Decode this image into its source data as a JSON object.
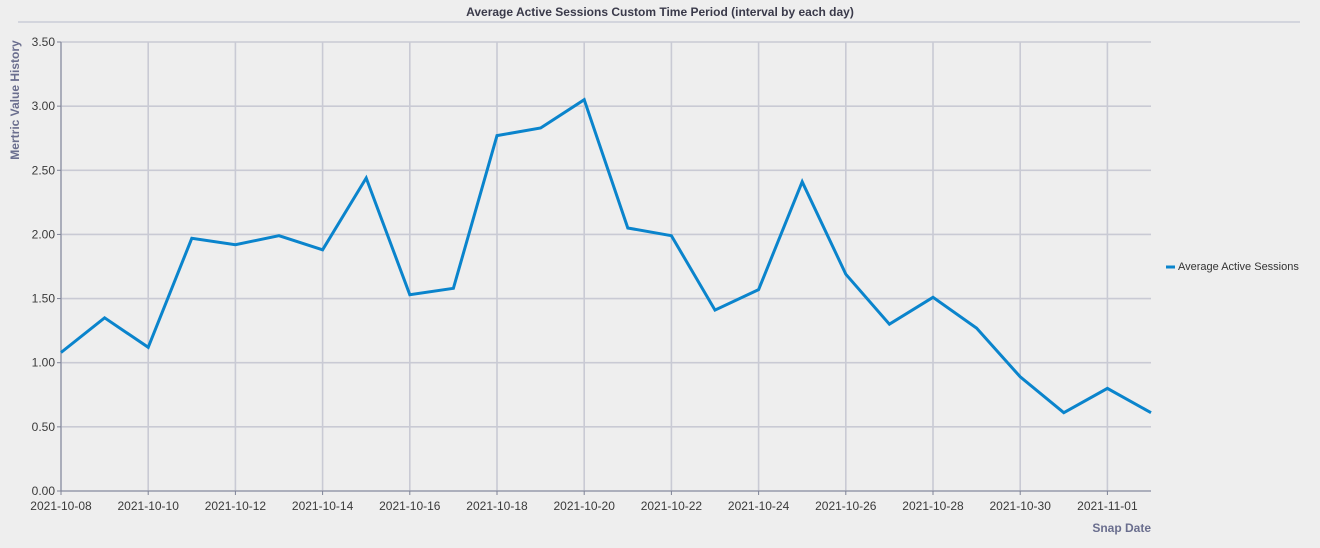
{
  "chart_data": {
    "type": "line",
    "title": "Average Active Sessions Custom Time Period (interval by each day)",
    "xlabel": "Snap Date",
    "ylabel": "Mertric Value History",
    "ylim": [
      0,
      3.5
    ],
    "yticks": [
      "0.00",
      "0.50",
      "1.00",
      "1.50",
      "2.00",
      "2.50",
      "3.00",
      "3.50"
    ],
    "xticks": [
      "2021-10-08",
      "2021-10-10",
      "2021-10-12",
      "2021-10-14",
      "2021-10-16",
      "2021-10-18",
      "2021-10-20",
      "2021-10-22",
      "2021-10-24",
      "2021-10-26",
      "2021-10-28",
      "2021-10-30",
      "2021-11-01"
    ],
    "x": [
      "2021-10-08",
      "2021-10-09",
      "2021-10-10",
      "2021-10-11",
      "2021-10-12",
      "2021-10-13",
      "2021-10-14",
      "2021-10-15",
      "2021-10-16",
      "2021-10-17",
      "2021-10-18",
      "2021-10-19",
      "2021-10-20",
      "2021-10-21",
      "2021-10-22",
      "2021-10-23",
      "2021-10-24",
      "2021-10-25",
      "2021-10-26",
      "2021-10-27",
      "2021-10-28",
      "2021-10-29",
      "2021-10-30",
      "2021-10-31",
      "2021-11-01",
      "2021-11-02"
    ],
    "series": [
      {
        "name": "Average Active Sessions",
        "color": "#0a84cc",
        "values": [
          1.08,
          1.35,
          1.12,
          1.97,
          1.92,
          1.99,
          1.88,
          2.44,
          1.53,
          1.58,
          2.77,
          2.83,
          3.05,
          2.05,
          1.99,
          1.41,
          1.57,
          2.41,
          1.69,
          1.3,
          1.51,
          1.27,
          0.89,
          0.61,
          0.8,
          0.61
        ]
      }
    ],
    "grid": true,
    "legend_position": "right"
  }
}
